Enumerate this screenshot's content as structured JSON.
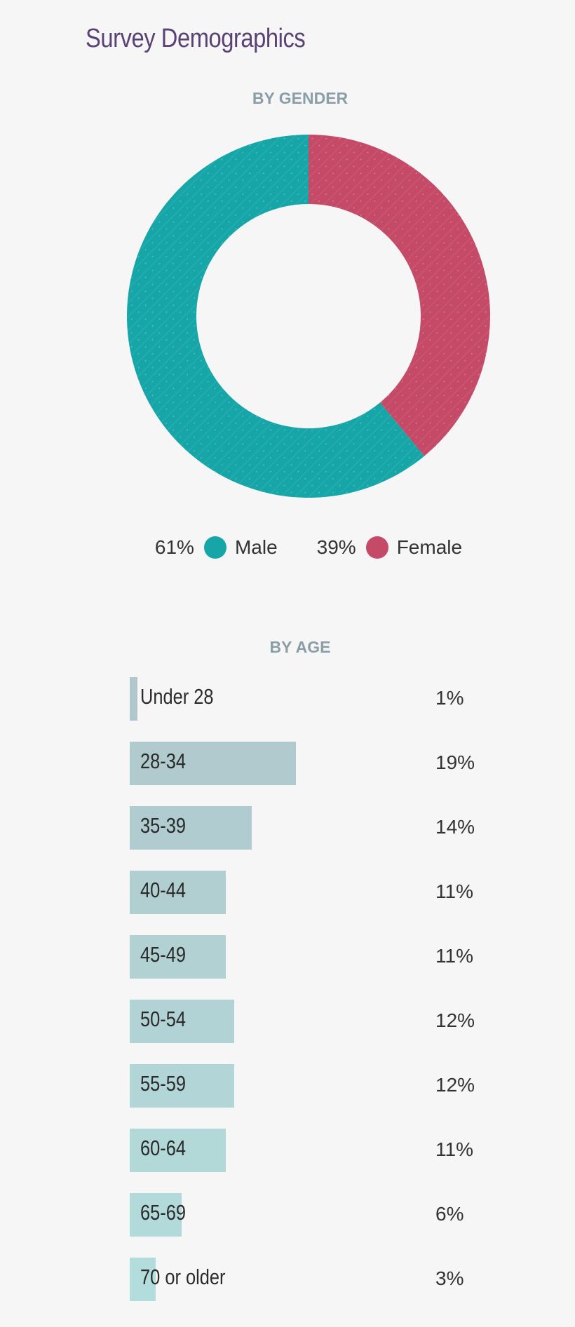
{
  "title": "Survey Demographics",
  "chart_data": [
    {
      "type": "pie",
      "title": "BY GENDER",
      "donut": true,
      "slices": [
        {
          "name": "Male",
          "value": 61,
          "label": "61%",
          "color": "#17a6a8"
        },
        {
          "name": "Female",
          "value": 39,
          "label": "39%",
          "color": "#c44a68"
        }
      ],
      "legend": "bottom"
    },
    {
      "type": "bar",
      "orientation": "horizontal",
      "title": "BY AGE",
      "categories": [
        "Under 28",
        "28-34",
        "35-39",
        "40-44",
        "45-49",
        "50-54",
        "55-59",
        "60-64",
        "65-69",
        "70 or older"
      ],
      "values": [
        1,
        19,
        14,
        11,
        11,
        12,
        12,
        11,
        6,
        3
      ],
      "value_labels": [
        "1%",
        "19%",
        "14%",
        "11%",
        "11%",
        "12%",
        "12%",
        "11%",
        "6%",
        "3%"
      ],
      "colors": {
        "start": "#b0c8cc",
        "end": "#b3dcdc"
      }
    }
  ]
}
